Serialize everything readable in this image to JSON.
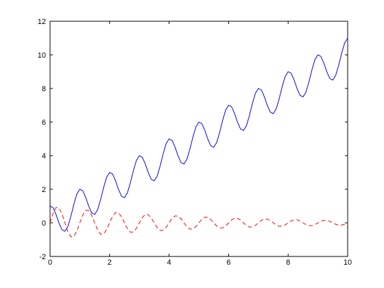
{
  "chart_data": {
    "type": "line",
    "x": [
      0,
      0.1,
      0.2,
      0.3,
      0.4,
      0.5,
      0.6,
      0.7,
      0.8,
      0.9,
      1,
      1.1,
      1.2,
      1.3,
      1.4,
      1.5,
      1.6,
      1.7,
      1.8,
      1.9,
      2,
      2.1,
      2.2,
      2.3,
      2.4,
      2.5,
      2.6,
      2.7,
      2.8,
      2.9,
      3,
      3.1,
      3.2,
      3.3,
      3.4,
      3.5,
      3.6,
      3.7,
      3.8,
      3.9,
      4,
      4.1,
      4.2,
      4.3,
      4.4,
      4.5,
      4.6,
      4.7,
      4.8,
      4.9,
      5,
      5.1,
      5.2,
      5.3,
      5.4,
      5.5,
      5.6,
      5.7,
      5.8,
      5.9,
      6,
      6.1,
      6.2,
      6.3,
      6.4,
      6.5,
      6.6,
      6.7,
      6.8,
      6.9,
      7,
      7.1,
      7.2,
      7.3,
      7.4,
      7.5,
      7.6,
      7.7,
      7.8,
      7.9,
      8,
      8.1,
      8.2,
      8.3,
      8.4,
      8.5,
      8.6,
      8.7,
      8.8,
      8.9,
      9,
      9.1,
      9.2,
      9.3,
      9.4,
      9.5,
      9.6,
      9.7,
      9.8,
      9.9,
      10
    ],
    "series": [
      {
        "color": "#0000ff",
        "dash": false,
        "values": [
          1,
          0.909,
          0.509,
          -0.009,
          -0.409,
          -0.5,
          -0.209,
          0.391,
          1.109,
          1.709,
          2,
          1.909,
          1.509,
          0.991,
          0.591,
          0.5,
          0.791,
          1.391,
          2.109,
          2.709,
          3,
          2.909,
          2.509,
          1.991,
          1.591,
          1.5,
          1.791,
          2.391,
          3.109,
          3.709,
          4,
          3.909,
          3.509,
          2.991,
          2.591,
          2.5,
          2.791,
          3.391,
          4.109,
          4.709,
          5,
          4.909,
          4.509,
          3.991,
          3.591,
          3.5,
          3.791,
          4.391,
          5.109,
          5.709,
          6,
          5.909,
          5.509,
          4.991,
          4.591,
          4.5,
          4.791,
          5.391,
          6.109,
          6.709,
          7,
          6.909,
          6.509,
          5.991,
          5.591,
          5.5,
          5.791,
          6.391,
          7.109,
          7.709,
          8,
          7.909,
          7.509,
          6.991,
          6.591,
          6.5,
          6.791,
          7.391,
          8.109,
          8.709,
          9,
          8.909,
          8.509,
          7.991,
          7.591,
          7.5,
          7.791,
          8.391,
          9.109,
          9.709,
          10,
          9.909,
          9.509,
          8.991,
          8.591,
          8.5,
          8.791,
          9.391,
          10.109,
          10.709,
          11
        ]
      },
      {
        "color": "#ff0000",
        "dash": true,
        "values": [
          0,
          0.576,
          0.914,
          0.896,
          0.543,
          0,
          -0.522,
          -0.827,
          -0.81,
          -0.491,
          0,
          0.472,
          0.748,
          0.733,
          0.444,
          0,
          -0.427,
          -0.677,
          -0.663,
          -0.402,
          0,
          0.386,
          0.612,
          0.6,
          0.364,
          0,
          -0.35,
          -0.554,
          -0.543,
          -0.329,
          0,
          0.316,
          0.501,
          0.492,
          0.298,
          0,
          -0.286,
          -0.454,
          -0.445,
          -0.27,
          0,
          0.259,
          0.411,
          0.402,
          0.244,
          0,
          -0.234,
          -0.371,
          -0.364,
          -0.221,
          0,
          0.212,
          0.336,
          0.33,
          0.2,
          0,
          -0.192,
          -0.304,
          -0.298,
          -0.181,
          0,
          0.174,
          0.275,
          0.27,
          0.163,
          0,
          -0.157,
          -0.249,
          -0.244,
          -0.148,
          0,
          0.142,
          0.225,
          0.221,
          0.134,
          0,
          -0.129,
          -0.204,
          -0.2,
          -0.121,
          0,
          0.116,
          0.184,
          0.181,
          0.11,
          0,
          -0.105,
          -0.167,
          -0.164,
          -0.099,
          0,
          0.095,
          0.151,
          0.148,
          0.09,
          0,
          -0.086,
          -0.137,
          -0.134,
          -0.081,
          0
        ]
      }
    ],
    "xlim": [
      0,
      10
    ],
    "xticks": [
      0,
      2,
      4,
      6,
      8,
      10
    ],
    "ylim": [
      -2,
      12
    ],
    "yticks": [
      -2,
      0,
      2,
      4,
      6,
      8,
      10,
      12
    ],
    "grid": false
  }
}
